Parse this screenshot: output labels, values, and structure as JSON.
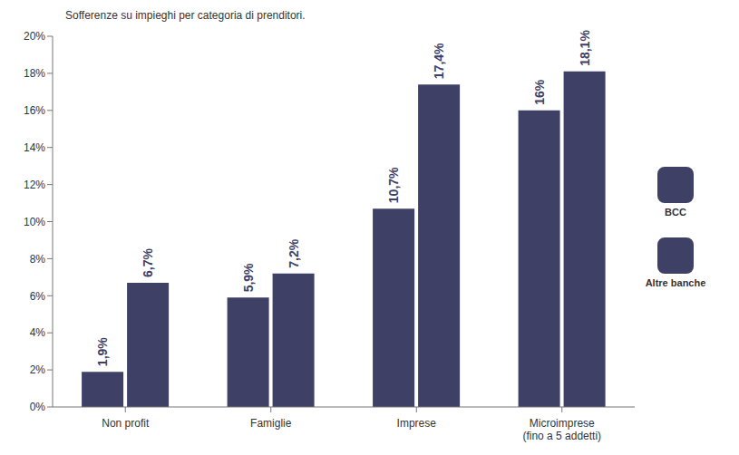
{
  "chart_data": {
    "type": "bar",
    "title": "Sofferenze su impieghi per categoria di prenditori.",
    "categories": [
      "Non profit",
      "Famiglie",
      "Imprese",
      "Microimprese (fino a 5 addetti)"
    ],
    "series": [
      {
        "name": "BCC",
        "color": "#3e4066",
        "values": [
          1.9,
          5.9,
          10.7,
          16
        ],
        "value_labels": [
          "1,9%",
          "5,9%",
          "10,7%",
          "16%"
        ]
      },
      {
        "name": "Altre banche",
        "color": "#3e4066",
        "values": [
          6.7,
          7.2,
          17.4,
          18.1
        ],
        "value_labels": [
          "6,7%",
          "7,2%",
          "17,4%",
          "18,1%"
        ]
      }
    ],
    "ylim": [
      0,
      20
    ],
    "yticks": [
      {
        "value": 0,
        "label": "0%"
      },
      {
        "value": 2,
        "label": "2%"
      },
      {
        "value": 4,
        "label": "4%"
      },
      {
        "value": 6,
        "label": "6%"
      },
      {
        "value": 8,
        "label": "8%"
      },
      {
        "value": 10,
        "label": "10%"
      },
      {
        "value": 12,
        "label": "12%"
      },
      {
        "value": 14,
        "label": "14%"
      },
      {
        "value": 16,
        "label": "16%"
      },
      {
        "value": 18,
        "label": "18%"
      },
      {
        "value": 20,
        "label": "20%"
      }
    ],
    "grid": false,
    "legend": "right",
    "data_labels": true
  }
}
